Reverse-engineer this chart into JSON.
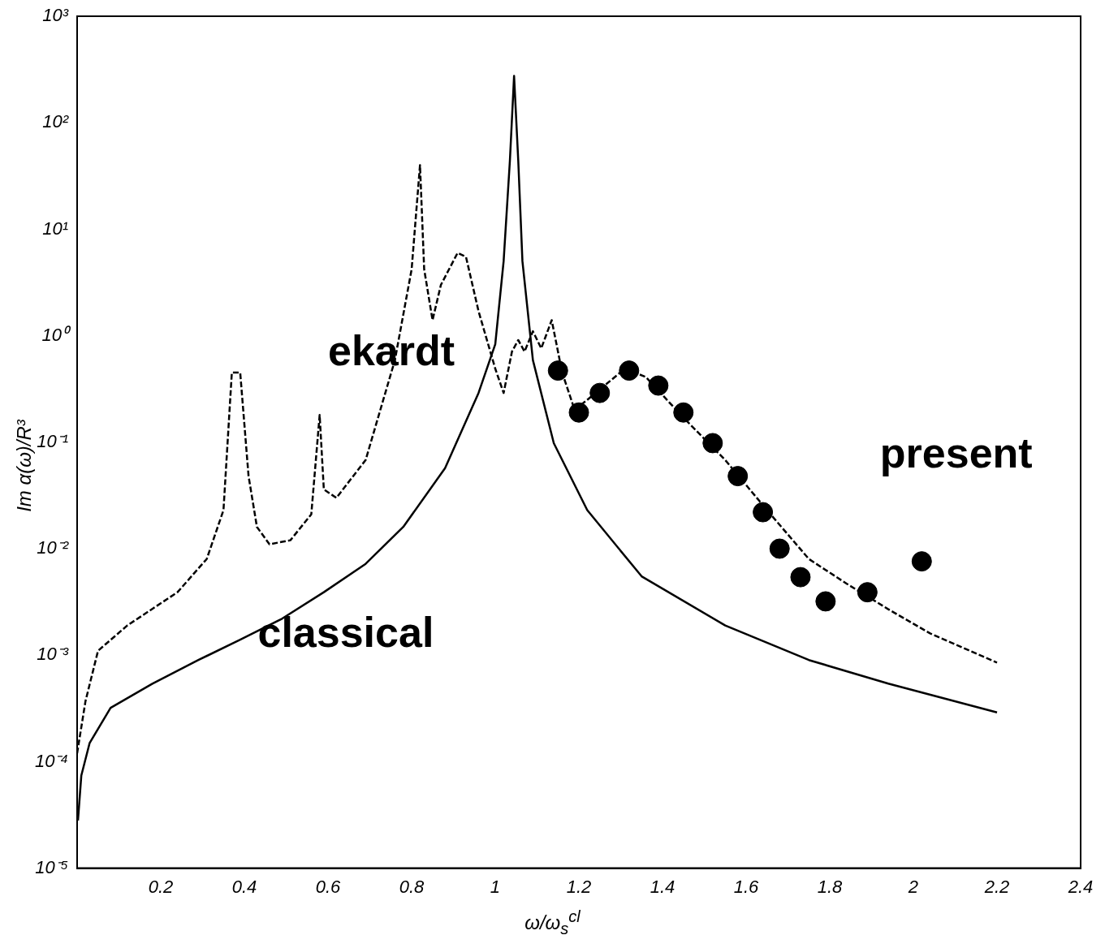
{
  "chart_data": {
    "type": "line",
    "xlabel": "ω/ω$_{s}$$^{cl}$",
    "ylabel": "Im α(ω)/R³",
    "log": "y",
    "grid": false,
    "legend": false,
    "xlim": [
      0,
      2.4
    ],
    "xticks": [
      0.2,
      0.4,
      0.6,
      0.8,
      1.0,
      1.2,
      1.4,
      1.6,
      1.8,
      2.0,
      2.2,
      2.4
    ],
    "ylim": [
      1e-05,
      1000
    ],
    "yticks": [
      {
        "value": 1e-05,
        "label": "10⁻⁵"
      },
      {
        "value": 0.0001,
        "label": "10⁻⁴"
      },
      {
        "value": 0.001,
        "label": "10⁻³"
      },
      {
        "value": 0.01,
        "label": "10⁻²"
      },
      {
        "value": 0.1,
        "label": "10⁻¹"
      },
      {
        "value": 1,
        "label": "10⁰"
      },
      {
        "value": 10,
        "label": "10¹"
      },
      {
        "value": 100,
        "label": "10²"
      },
      {
        "value": 1000,
        "label": "10³"
      }
    ],
    "series": [
      {
        "name": "classical",
        "type": "line",
        "color": "#000000",
        "line_style": "solid",
        "marker": "none",
        "x": [
          0.002,
          0.01,
          0.03,
          0.08,
          0.18,
          0.29,
          0.39,
          0.49,
          0.59,
          0.69,
          0.78,
          0.88,
          0.96,
          1.0,
          1.02,
          1.035,
          1.045,
          1.055,
          1.065,
          1.09,
          1.14,
          1.22,
          1.35,
          1.55,
          1.75,
          1.94,
          2.2
        ],
        "values": [
          2.8e-05,
          7.4e-05,
          0.00015,
          0.00032,
          0.00054,
          0.0009,
          0.0014,
          0.0022,
          0.0039,
          0.0072,
          0.016,
          0.057,
          0.29,
          0.83,
          5,
          44,
          275,
          44,
          5,
          0.59,
          0.098,
          0.023,
          0.0055,
          0.0019,
          0.0009,
          0.00054,
          0.00029
        ]
      },
      {
        "name": "ekardt",
        "type": "line",
        "color": "#000000",
        "line_style": "dashed",
        "marker": "none",
        "x": [
          0.0,
          0.02,
          0.05,
          0.12,
          0.24,
          0.31,
          0.35,
          0.37,
          0.39,
          0.41,
          0.43,
          0.46,
          0.51,
          0.56,
          0.58,
          0.59,
          0.62,
          0.69,
          0.76,
          0.8,
          0.82,
          0.83,
          0.85,
          0.87,
          0.91,
          0.93,
          0.96,
          1.0,
          1.02,
          1.04,
          1.055,
          1.07,
          1.09,
          1.11,
          1.135,
          1.16,
          1.19,
          1.24,
          1.31,
          1.36,
          1.45,
          1.55,
          1.65,
          1.75,
          1.84,
          1.94,
          2.04,
          2.2
        ],
        "values": [
          0.00012,
          0.00037,
          0.0011,
          0.0019,
          0.0039,
          0.008,
          0.023,
          0.45,
          0.45,
          0.048,
          0.016,
          0.011,
          0.012,
          0.021,
          0.18,
          0.036,
          0.03,
          0.068,
          0.59,
          4.2,
          40,
          4.2,
          1.4,
          3,
          6,
          5.5,
          1.7,
          0.49,
          0.29,
          0.71,
          0.91,
          0.71,
          1.1,
          0.76,
          1.4,
          0.45,
          0.2,
          0.29,
          0.49,
          0.41,
          0.17,
          0.068,
          0.023,
          0.008,
          0.0047,
          0.0027,
          0.0016,
          0.00085
        ]
      },
      {
        "name": "present",
        "type": "scatter",
        "color": "#000000",
        "marker": "circle",
        "x": [
          1.15,
          1.2,
          1.25,
          1.32,
          1.39,
          1.45,
          1.52,
          1.58,
          1.64,
          1.68,
          1.73,
          1.79,
          1.89,
          2.02
        ],
        "values": [
          0.47,
          0.19,
          0.29,
          0.47,
          0.34,
          0.19,
          0.098,
          0.048,
          0.022,
          0.01,
          0.0054,
          0.0032,
          0.0039,
          0.0076
        ]
      }
    ]
  }
}
